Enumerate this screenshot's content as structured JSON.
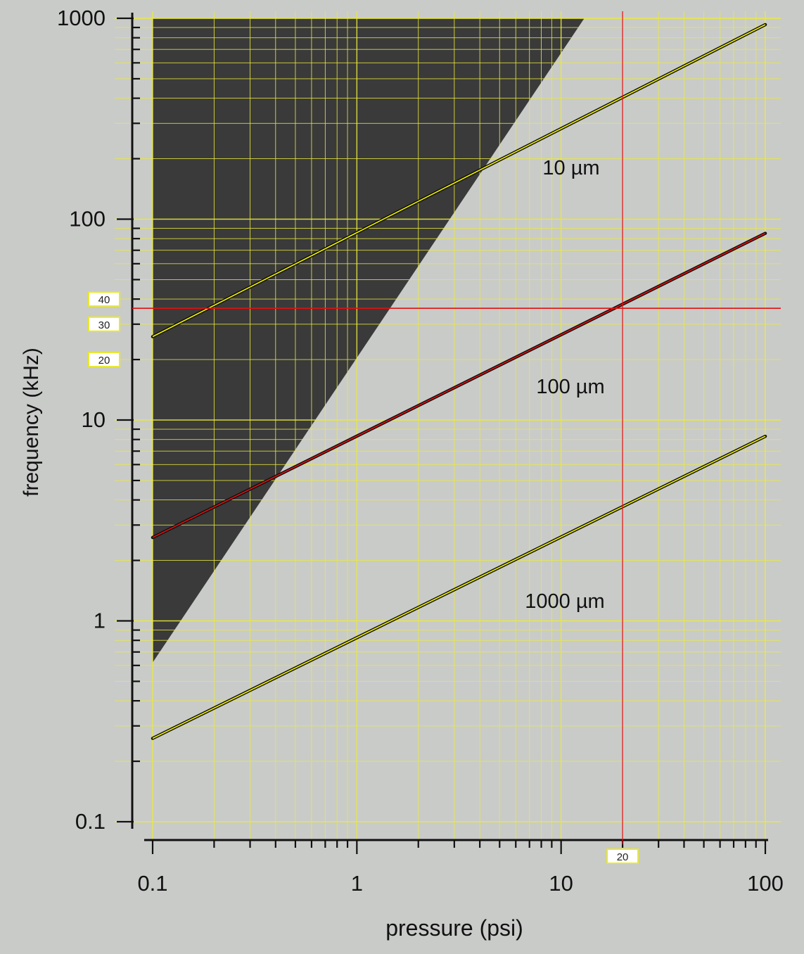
{
  "chart_data": {
    "type": "line",
    "xlabel": "pressure (psi)",
    "ylabel": "frequency (kHz)",
    "xscale": "log",
    "yscale": "log",
    "xlim": [
      0.1,
      100
    ],
    "ylim": [
      0.1,
      1000
    ],
    "x_ticks": [
      {
        "value": 0.1,
        "label": "0.1"
      },
      {
        "value": 1,
        "label": "1"
      },
      {
        "value": 10,
        "label": "10"
      },
      {
        "value": 100,
        "label": "100"
      }
    ],
    "y_ticks": [
      {
        "value": 0.1,
        "label": "0.1"
      },
      {
        "value": 1,
        "label": "1"
      },
      {
        "value": 10,
        "label": "10"
      },
      {
        "value": 100,
        "label": "100"
      },
      {
        "value": 1000,
        "label": "1000"
      }
    ],
    "series": [
      {
        "name": "10 µm",
        "x": [
          0.1,
          100
        ],
        "y": [
          26,
          930
        ],
        "color": "#111111",
        "overlay": "#f2f200"
      },
      {
        "name": "100 µm",
        "x": [
          0.1,
          100
        ],
        "y": [
          2.6,
          85
        ],
        "color": "#111111",
        "overlay": "#e01010"
      },
      {
        "name": "1000 µm",
        "x": [
          0.1,
          100
        ],
        "y": [
          0.26,
          8.3
        ],
        "color": "#111111",
        "overlay": "#f2f200"
      }
    ],
    "shaded_region": {
      "polygon": [
        [
          0.1,
          1000
        ],
        [
          13,
          1000
        ],
        [
          0.1,
          0.62
        ]
      ],
      "color": "#3a3a3a"
    },
    "guides": [
      {
        "axis": "y",
        "value": 36,
        "color": "#e01010"
      },
      {
        "axis": "x",
        "value": 20,
        "color": "#e01010"
      }
    ],
    "marker_labels": [
      {
        "axis": "y",
        "value": 40,
        "text": "40"
      },
      {
        "axis": "y",
        "value": 30,
        "text": "30"
      },
      {
        "axis": "y",
        "value": 20,
        "text": "20"
      },
      {
        "axis": "x",
        "value": 20,
        "text": "20"
      }
    ],
    "grid": true,
    "grid_color": "#eaea3c",
    "legend": "inline"
  }
}
